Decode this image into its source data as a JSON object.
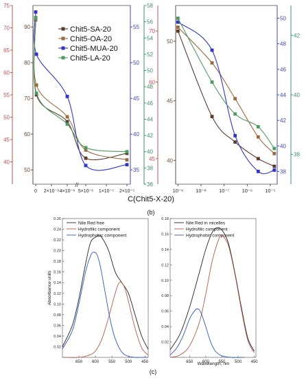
{
  "figure": {
    "xlabel_shared": "C(Chit5-X-20)",
    "panel_b_label": "(b)",
    "panel_c_label": "(c)"
  },
  "colors": {
    "SA": "#5a3a2c",
    "OA": "#9a6b3f",
    "MUA": "#2f35c8",
    "LA": "#4f9a62",
    "axis_left_1": "#c0504d",
    "axis_left_2": "#6b4a33",
    "axis_right_1": "#3f45c0",
    "axis_right_2": "#3b8f6a",
    "nr_total": "#222222",
    "nr_hydrophilic": "#b25a4a",
    "nr_hydrophobic": "#2f56c8"
  },
  "chart_data": [
    {
      "id": "b-left",
      "type": "line",
      "x_scale": "broken-axis",
      "legend": [
        "Chit5-SA-20",
        "Chit5-OA-20",
        "Chit5-MUA-20",
        "Chit5-LA-20"
      ],
      "legend_position": "top-left",
      "x_tick_labels": [
        "0",
        "2×10⁻⁸",
        "4×10⁻⁸",
        "5×10⁻⁶",
        "1×10⁻⁵",
        "2×10⁻⁵"
      ],
      "y_axes": {
        "left_outer": {
          "ylim": [
            35,
            75
          ],
          "ticks": [
            "40",
            "45",
            "50",
            "55",
            "60",
            "65",
            "70",
            "75"
          ]
        },
        "left_inner": {
          "ylim": [
            46,
            96
          ],
          "ticks": [
            "50",
            "60",
            "70",
            "80",
            "90"
          ]
        },
        "right_inner": {
          "ylim": [
            33,
            58
          ],
          "ticks": [
            "35",
            "40",
            "45",
            "50",
            "55"
          ]
        },
        "right_outer": {
          "ylim": [
            36,
            58
          ],
          "ticks": [
            "36",
            "38",
            "40",
            "42",
            "44",
            "46",
            "48",
            "50",
            "52",
            "54",
            "56",
            "58"
          ]
        }
      },
      "series": [
        {
          "name": "Chit5-SA-20",
          "x": [
            0,
            1e-09,
            4e-08,
            5e-06,
            2e-05
          ],
          "values": [
            56.5,
            47.0,
            43.7,
            39.2,
            39.8
          ]
        },
        {
          "name": "Chit5-OA-20",
          "x": [
            0,
            1e-09,
            4e-08,
            5e-06,
            2e-05
          ],
          "values": [
            56.2,
            48.2,
            44.3,
            40.2,
            39.0
          ]
        },
        {
          "name": "Chit5-MUA-20",
          "x": [
            0,
            1e-09,
            4e-08,
            5e-06,
            2e-05
          ],
          "values": [
            57.2,
            52.0,
            46.8,
            38.3,
            38.4
          ]
        },
        {
          "name": "Chit5-LA-20",
          "x": [
            0,
            1e-09,
            4e-08,
            5e-06,
            2e-05
          ],
          "values": [
            56.5,
            47.2,
            43.4,
            40.5,
            40.0
          ]
        }
      ]
    },
    {
      "id": "b-right",
      "type": "line",
      "x_scale": "log",
      "x_tick_labels": [
        "10⁻⁹",
        "10⁻⁸",
        "10⁻⁷",
        "10⁻⁶",
        "10⁻⁵"
      ],
      "y_axes": {
        "left_outer": {
          "ylim": [
            40,
            75
          ],
          "ticks": [
            "45",
            "60",
            "70"
          ]
        },
        "left_inner": {
          "ylim": [
            38,
            53
          ],
          "ticks": [
            "40",
            "45",
            "50"
          ]
        },
        "right_inner": {
          "ylim": [
            37,
            51
          ],
          "ticks": [
            "38",
            "40",
            "42",
            "44",
            "46",
            "48",
            "50"
          ]
        },
        "right_outer": {
          "ylim": [
            37,
            43
          ],
          "ticks": [
            "38",
            "40",
            "42"
          ]
        }
      },
      "series": [
        {
          "name": "Chit5-SA-20",
          "x": [
            1e-09,
            3e-08,
            3e-07,
            3e-06,
            1.5e-05
          ],
          "values": [
            49.0,
            42.3,
            40.3,
            39.0,
            38.4
          ]
        },
        {
          "name": "Chit5-OA-20",
          "x": [
            1e-09,
            3e-08,
            3e-07,
            3e-06,
            1.5e-05
          ],
          "values": [
            49.3,
            46.5,
            43.7,
            40.7,
            39.4
          ]
        },
        {
          "name": "Chit5-MUA-20",
          "x": [
            1e-09,
            3e-08,
            3e-07,
            3e-06,
            1.5e-05
          ],
          "values": [
            49.7,
            47.5,
            40.8,
            38.0,
            38.1
          ]
        },
        {
          "name": "Chit5-LA-20",
          "x": [
            1e-09,
            3e-08,
            3e-07,
            3e-06,
            1.5e-05
          ],
          "values": [
            50.0,
            45.0,
            42.5,
            41.5,
            39.8
          ]
        }
      ]
    },
    {
      "id": "c-left",
      "type": "line",
      "xlabel": "",
      "ylabel": "Absorbance units",
      "x_reversed": true,
      "xlim": [
        700,
        440
      ],
      "ylim": [
        0.0,
        0.26
      ],
      "x_ticks": [
        "650",
        "600",
        "550",
        "500",
        "450"
      ],
      "y_ticks": [
        "0.02",
        "0.04",
        "0.06",
        "0.08",
        "0.10",
        "0.12",
        "0.14",
        "0.16",
        "0.18",
        "0.20",
        "0.22",
        "0.24",
        "0.26"
      ],
      "legend_position": "top",
      "series": [
        {
          "name": "Nile Red free",
          "x": [
            700,
            670,
            650,
            630,
            615,
            600,
            590,
            580,
            560,
            540,
            520,
            500,
            480,
            460,
            440
          ],
          "values": [
            0.02,
            0.06,
            0.11,
            0.175,
            0.215,
            0.225,
            0.228,
            0.224,
            0.2,
            0.16,
            0.14,
            0.12,
            0.08,
            0.04,
            0.015
          ]
        },
        {
          "name": "Hydrofilic component",
          "x": [
            700,
            650,
            620,
            600,
            580,
            560,
            540,
            530,
            520,
            510,
            500,
            480,
            460,
            440
          ],
          "values": [
            0.0,
            0.0,
            0.004,
            0.012,
            0.035,
            0.075,
            0.12,
            0.138,
            0.14,
            0.128,
            0.105,
            0.055,
            0.018,
            0.004
          ]
        },
        {
          "name": "Hydrophobic component",
          "x": [
            700,
            670,
            650,
            630,
            615,
            605,
            595,
            585,
            570,
            555,
            540,
            520,
            500,
            480,
            460,
            440
          ],
          "values": [
            0.016,
            0.05,
            0.1,
            0.16,
            0.19,
            0.197,
            0.192,
            0.17,
            0.12,
            0.07,
            0.035,
            0.01,
            0.002,
            0.0,
            0.0,
            0.0
          ]
        }
      ]
    },
    {
      "id": "c-right",
      "type": "line",
      "xlabel": "Wavelength, nm",
      "x_reversed": true,
      "xlim": [
        710,
        445
      ],
      "ylim": [
        0.0,
        0.18
      ],
      "x_ticks": [
        "650",
        "600",
        "550",
        "500",
        "450"
      ],
      "y_ticks": [
        "0.02",
        "0.04",
        "0.06",
        "0.08",
        "0.10",
        "0.12",
        "0.14",
        "0.16",
        "0.18"
      ],
      "legend_position": "top",
      "series": [
        {
          "name": "Nile Red in micelles",
          "x": [
            710,
            680,
            650,
            620,
            600,
            580,
            565,
            550,
            530,
            510,
            490,
            470,
            450
          ],
          "values": [
            0.01,
            0.03,
            0.065,
            0.11,
            0.14,
            0.162,
            0.168,
            0.165,
            0.148,
            0.11,
            0.065,
            0.025,
            0.008
          ]
        },
        {
          "name": "Hydrofilic component",
          "x": [
            710,
            680,
            650,
            620,
            600,
            580,
            560,
            550,
            530,
            510,
            490,
            470,
            450
          ],
          "values": [
            0.0,
            0.003,
            0.015,
            0.045,
            0.082,
            0.125,
            0.153,
            0.158,
            0.145,
            0.108,
            0.062,
            0.022,
            0.006
          ]
        },
        {
          "name": "Hydrophobic component",
          "x": [
            710,
            690,
            670,
            650,
            635,
            625,
            615,
            600,
            585,
            570,
            550,
            520,
            480
          ],
          "values": [
            0.003,
            0.012,
            0.028,
            0.05,
            0.06,
            0.063,
            0.058,
            0.04,
            0.02,
            0.008,
            0.002,
            0.0,
            0.0
          ]
        }
      ]
    }
  ]
}
